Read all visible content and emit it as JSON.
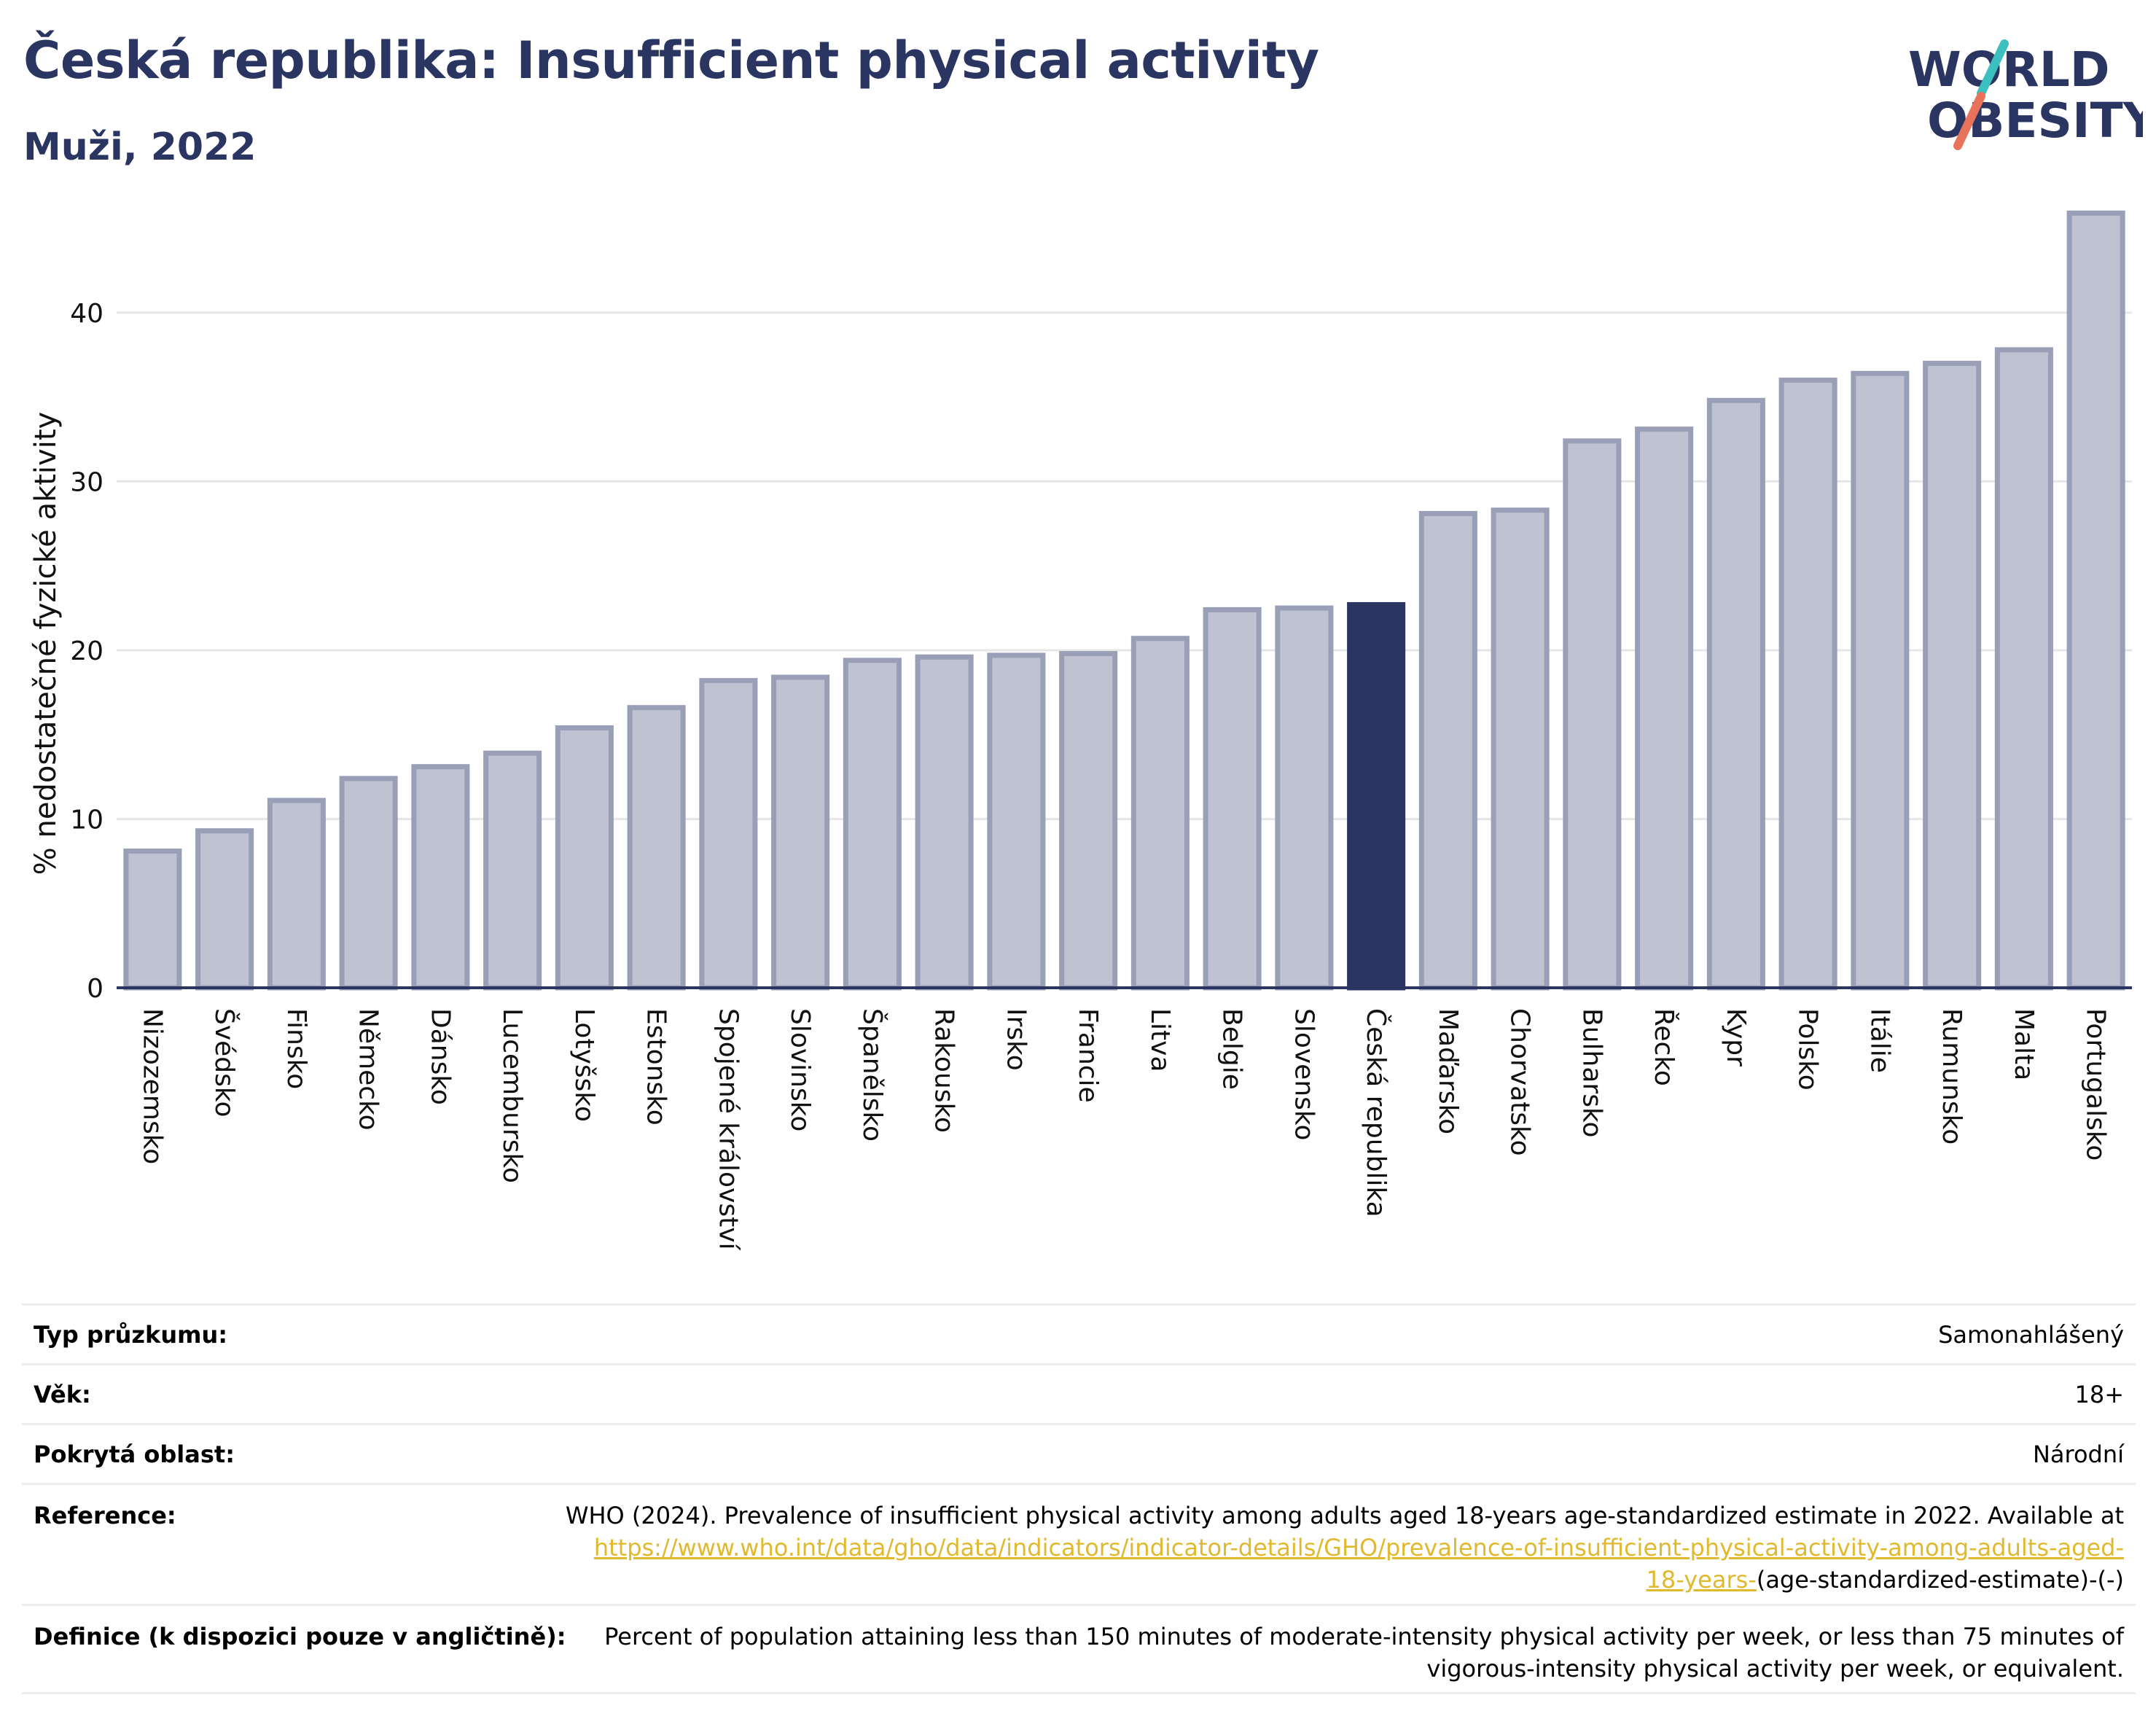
{
  "header": {
    "title": "Česká republika: Insufficient physical activity",
    "subtitle": "Muži, 2022"
  },
  "logo": {
    "line1": "WORLD",
    "line2": "OBESITY",
    "accent_colors": [
      "#3bbfbf",
      "#e8735a"
    ]
  },
  "colors": {
    "highlight": "#2b3561",
    "bar_fill": "#bfc2d0",
    "bar_stroke": "#9a9fb8",
    "text": "#2b3561",
    "link": "#e0b92e"
  },
  "chart_data": {
    "type": "bar",
    "ylabel": "% nedostatečné fyzické aktivity",
    "xlabel": "",
    "ylim": [
      0,
      46
    ],
    "yticks": [
      0,
      10,
      20,
      30,
      40
    ],
    "grid": true,
    "highlight": "Česká republika",
    "categories": [
      "Nizozemsko",
      "Švédsko",
      "Finsko",
      "Německo",
      "Dánsko",
      "Lucembursko",
      "Lotyšsko",
      "Estonsko",
      "Spojené království",
      "Slovinsko",
      "Španělsko",
      "Rakousko",
      "Irsko",
      "Francie",
      "Litva",
      "Belgie",
      "Slovensko",
      "Česká republika",
      "Maďarsko",
      "Chorvatsko",
      "Bulharsko",
      "Řecko",
      "Kypr",
      "Polsko",
      "Itálie",
      "Rumunsko",
      "Malta",
      "Portugalsko"
    ],
    "values": [
      8.1,
      9.3,
      11.1,
      12.4,
      13.1,
      13.9,
      15.4,
      16.6,
      18.2,
      18.4,
      19.4,
      19.6,
      19.7,
      19.8,
      20.7,
      22.4,
      22.5,
      22.7,
      28.1,
      28.3,
      32.4,
      33.1,
      34.8,
      36.0,
      36.4,
      37.0,
      37.8,
      45.9
    ]
  },
  "info": {
    "rows": [
      {
        "label": "Typ průzkumu:",
        "value": "Samonahlášený"
      },
      {
        "label": "Věk:",
        "value": "18+"
      },
      {
        "label": "Pokrytá oblast:",
        "value": "Národní"
      }
    ],
    "reference": {
      "label": "Reference:",
      "text_before": "WHO (2024). Prevalence of insufficient physical activity among adults aged 18-years age-standardized estimate in 2022. Available at",
      "link_line1": "https://www.who.int/data/gho/data/indicators/indicator-details/GHO/prevalence-of-insufficient-physical-activity-among-adults-aged-",
      "link_line2": "18-years-",
      "text_after": "(age-standardized-estimate)-(-)"
    },
    "definition": {
      "label": "Definice (k dispozici pouze v angličtině):",
      "line1": "Percent of population attaining less than 150 minutes of moderate-intensity physical activity per week, or less than 75 minutes of",
      "line2": "vigorous-intensity physical activity per week, or equivalent."
    }
  }
}
